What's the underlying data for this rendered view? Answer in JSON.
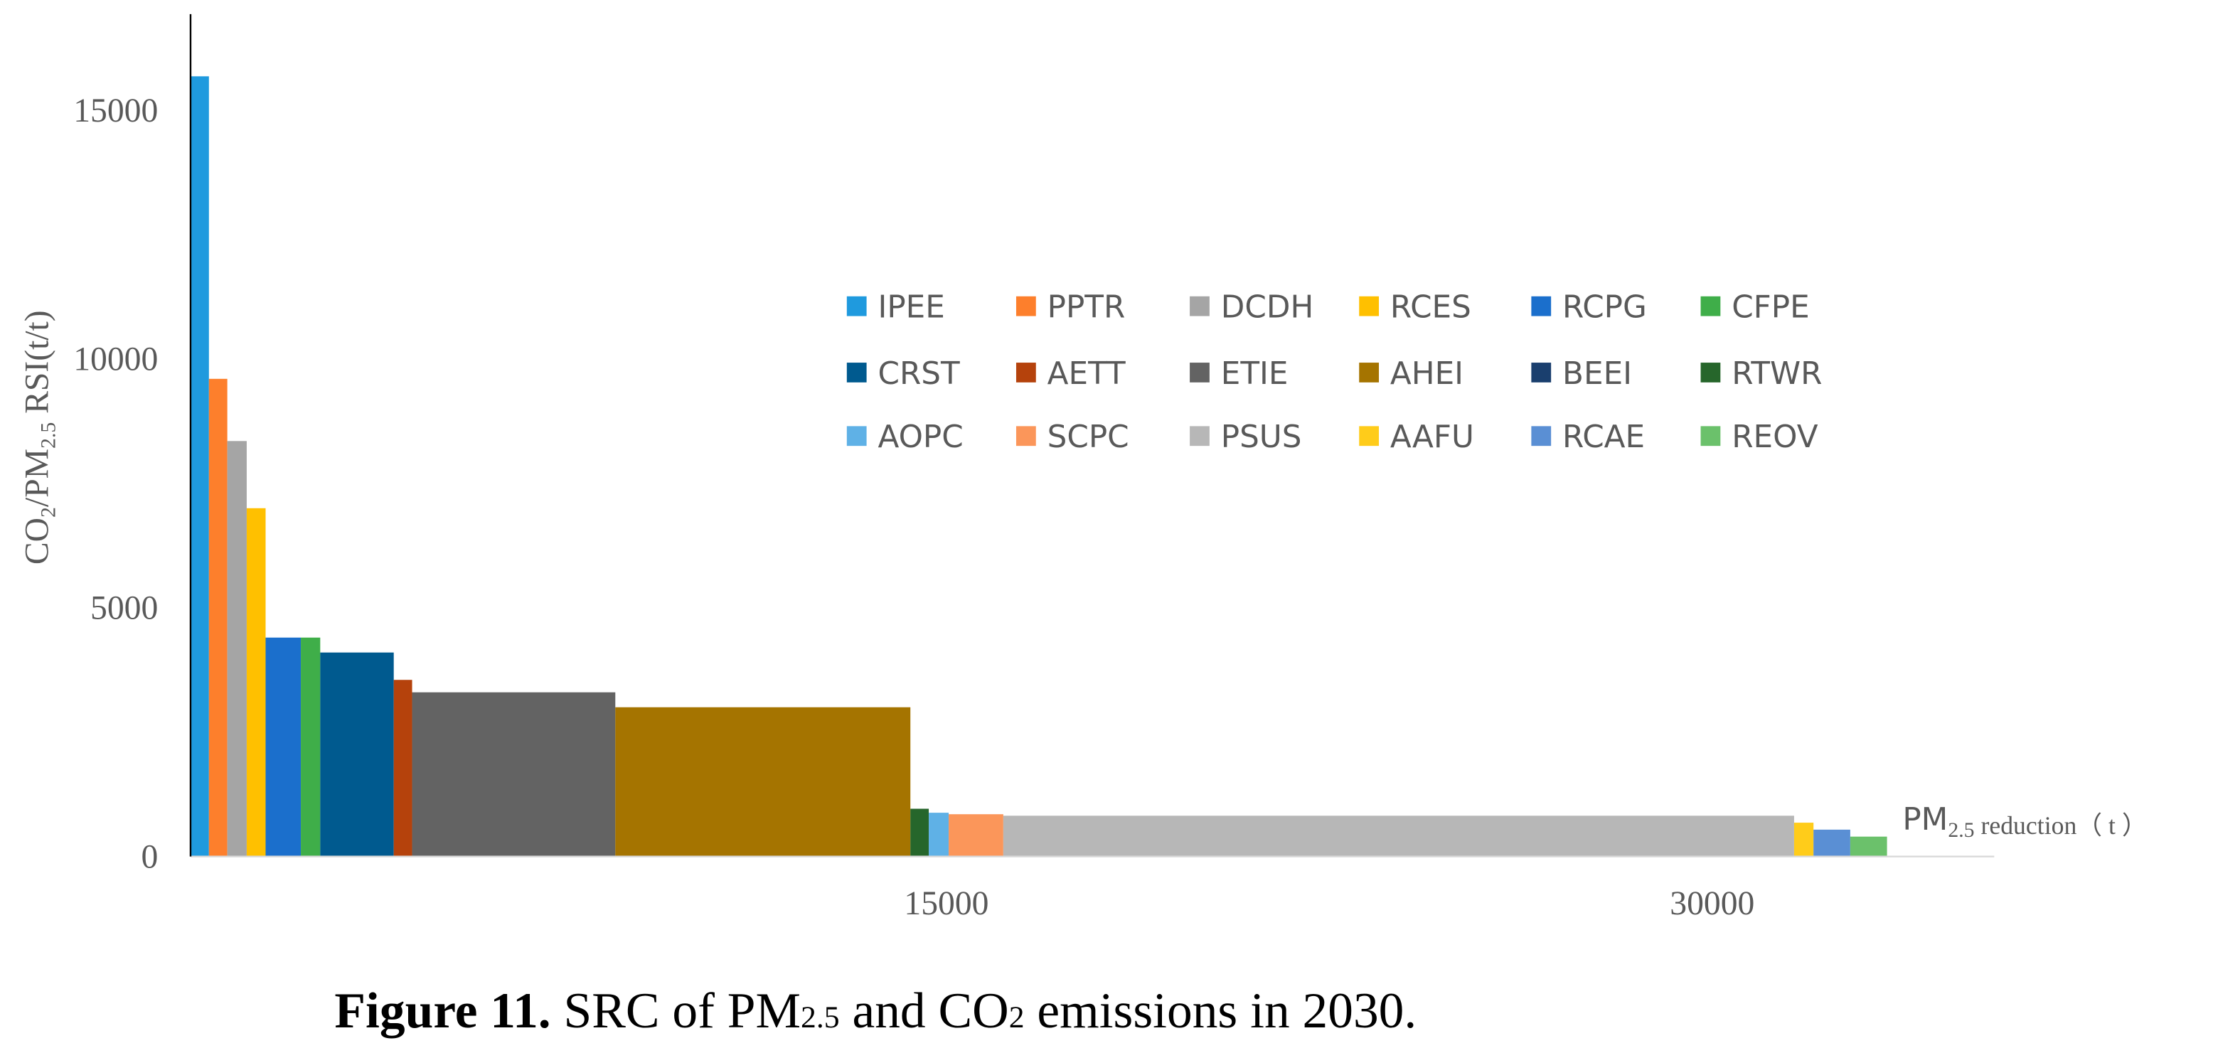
{
  "chart_data": {
    "type": "step-bar",
    "y_label": [
      "CO",
      "2",
      "/PM",
      "2.5",
      " RSI(t/t)"
    ],
    "x_label": [
      "PM",
      "2.5",
      " reduction（ t ）"
    ],
    "caption": [
      "Figure 11.",
      " SRC of PM",
      "2.5",
      " and CO",
      "2",
      " emissions in 2030."
    ],
    "xlim": [
      0,
      35330
    ],
    "ylim": [
      0,
      16930
    ],
    "xticks": [
      15000,
      30000
    ],
    "yticks": [
      0,
      5000,
      10000,
      15000
    ],
    "series": [
      {
        "name": "IPEE",
        "color": "#1f9ade",
        "x": [
          0,
          360
        ],
        "value": 15680
      },
      {
        "name": "PPTR",
        "color": "#fd7f2c",
        "x": [
          360,
          720
        ],
        "value": 9600
      },
      {
        "name": "DCDH",
        "color": "#a5a5a5",
        "x": [
          720,
          1100
        ],
        "value": 8350
      },
      {
        "name": "RCES",
        "color": "#ffc000",
        "x": [
          1100,
          1470
        ],
        "value": 7000
      },
      {
        "name": "RCPG",
        "color": "#1b6fcc",
        "x": [
          1470,
          2160
        ],
        "value": 4400
      },
      {
        "name": "CFPE",
        "color": "#3fae49",
        "x": [
          2160,
          2540
        ],
        "value": 4400
      },
      {
        "name": "CRST",
        "color": "#005a8f",
        "x": [
          2540,
          3980
        ],
        "value": 4100
      },
      {
        "name": "AETT",
        "color": "#b5420c",
        "x": [
          3980,
          4340
        ],
        "value": 3550
      },
      {
        "name": "ETIE",
        "color": "#636363",
        "x": [
          4340,
          8320
        ],
        "value": 3300
      },
      {
        "name": "AHEI",
        "color": "#a57400",
        "x": [
          8320,
          14100
        ],
        "value": 3000
      },
      {
        "name": "BEEI",
        "color": "#1a3f6e",
        "x": null,
        "value": null
      },
      {
        "name": "RTWR",
        "color": "#26662b",
        "x": [
          14100,
          14460
        ],
        "value": 960
      },
      {
        "name": "AOPC",
        "color": "#5fb1e6",
        "x": [
          14460,
          14850
        ],
        "value": 880
      },
      {
        "name": "SCPC",
        "color": "#fb965a",
        "x": [
          14850,
          15920
        ],
        "value": 850
      },
      {
        "name": "PSUS",
        "color": "#b7b7b7",
        "x": [
          15920,
          31410
        ],
        "value": 820
      },
      {
        "name": "AAFU",
        "color": "#ffcc1a",
        "x": [
          31410,
          31790
        ],
        "value": 680
      },
      {
        "name": "RCAE",
        "color": "#5a8fd4",
        "x": [
          31790,
          32510
        ],
        "value": 540
      },
      {
        "name": "REOV",
        "color": "#6bc16b",
        "x": [
          32510,
          33230
        ],
        "value": 400
      }
    ]
  }
}
